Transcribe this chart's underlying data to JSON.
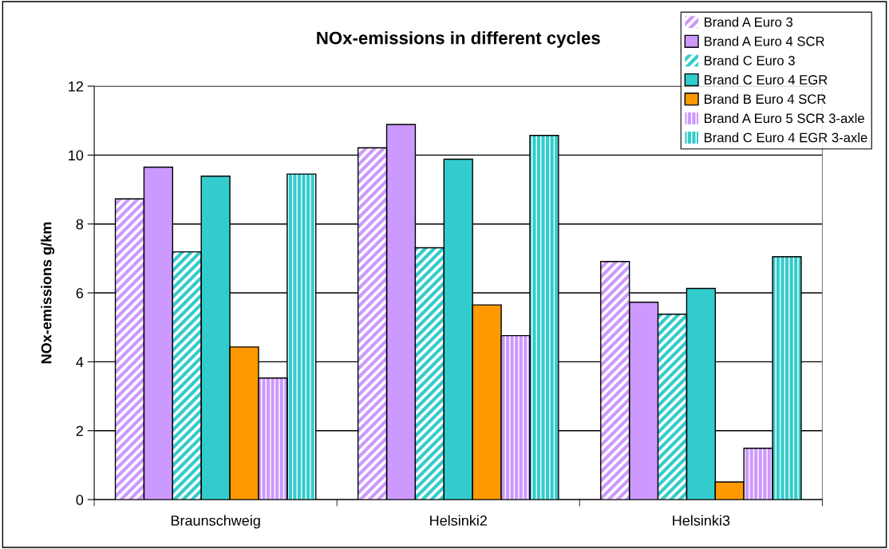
{
  "chart_data": {
    "type": "bar",
    "title": "NOx-emissions in different cycles",
    "ylabel": "NOx-emissions g/km",
    "categories": [
      "Braunschweig",
      "Helsinki2",
      "Helsinki3"
    ],
    "series": [
      {
        "name": "Brand A Euro 3",
        "color": "#cc99ff",
        "values": [
          8.73,
          10.21,
          6.91
        ]
      },
      {
        "name": "Brand A Euro 4 SCR",
        "color": "#cc99ff",
        "values": [
          9.65,
          10.89,
          5.73
        ]
      },
      {
        "name": "Brand C Euro 3",
        "color": "#33cccc",
        "values": [
          7.19,
          7.31,
          5.38
        ]
      },
      {
        "name": "Brand C Euro 4 EGR",
        "color": "#33cccc",
        "values": [
          9.39,
          9.88,
          6.13
        ]
      },
      {
        "name": "Brand B Euro 4 SCR",
        "color": "#ff9900",
        "values": [
          4.43,
          5.65,
          0.51
        ]
      },
      {
        "name": "Brand A Euro 5 SCR 3-axle",
        "color": "#cc99ff",
        "values": [
          3.53,
          4.76,
          1.49
        ]
      },
      {
        "name": "Brand C Euro 4 EGR 3-axle",
        "color": "#33cccc",
        "values": [
          9.45,
          10.57,
          7.05
        ]
      }
    ],
    "ylim": [
      0,
      12
    ],
    "yticks": [
      0,
      2,
      4,
      6,
      8,
      10,
      12
    ],
    "grid": "y",
    "legend": "top right"
  }
}
